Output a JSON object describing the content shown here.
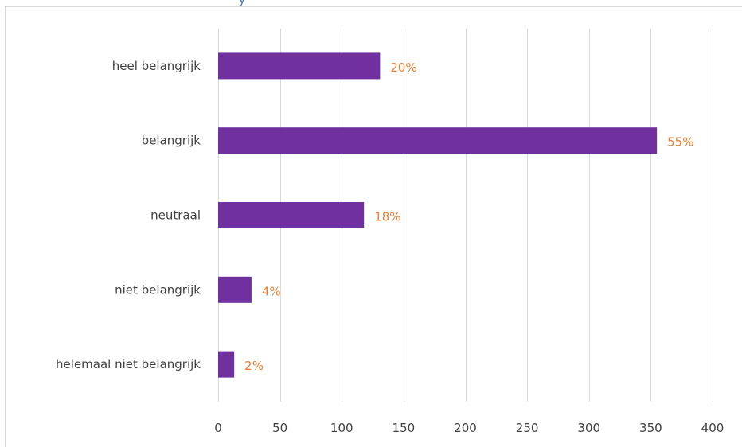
{
  "top_text": "y",
  "chart_data": {
    "type": "bar",
    "orientation": "horizontal",
    "categories": [
      "heel belangrijk",
      "belangrijk",
      "neutraal",
      "niet belangrijk",
      "helemaal niet belangrijk"
    ],
    "values": [
      131,
      355,
      118,
      27,
      13
    ],
    "data_labels": [
      "20%",
      "55%",
      "18%",
      "4%",
      "2%"
    ],
    "xlim": [
      0,
      400
    ],
    "x_ticks": [
      0,
      50,
      100,
      150,
      200,
      250,
      300,
      350,
      400
    ],
    "grid": "vertical",
    "colors": {
      "bar": "#7030a0",
      "data_label": "#ed7d31",
      "grid": "#d9d9d9",
      "axis_text": "#404040"
    }
  }
}
